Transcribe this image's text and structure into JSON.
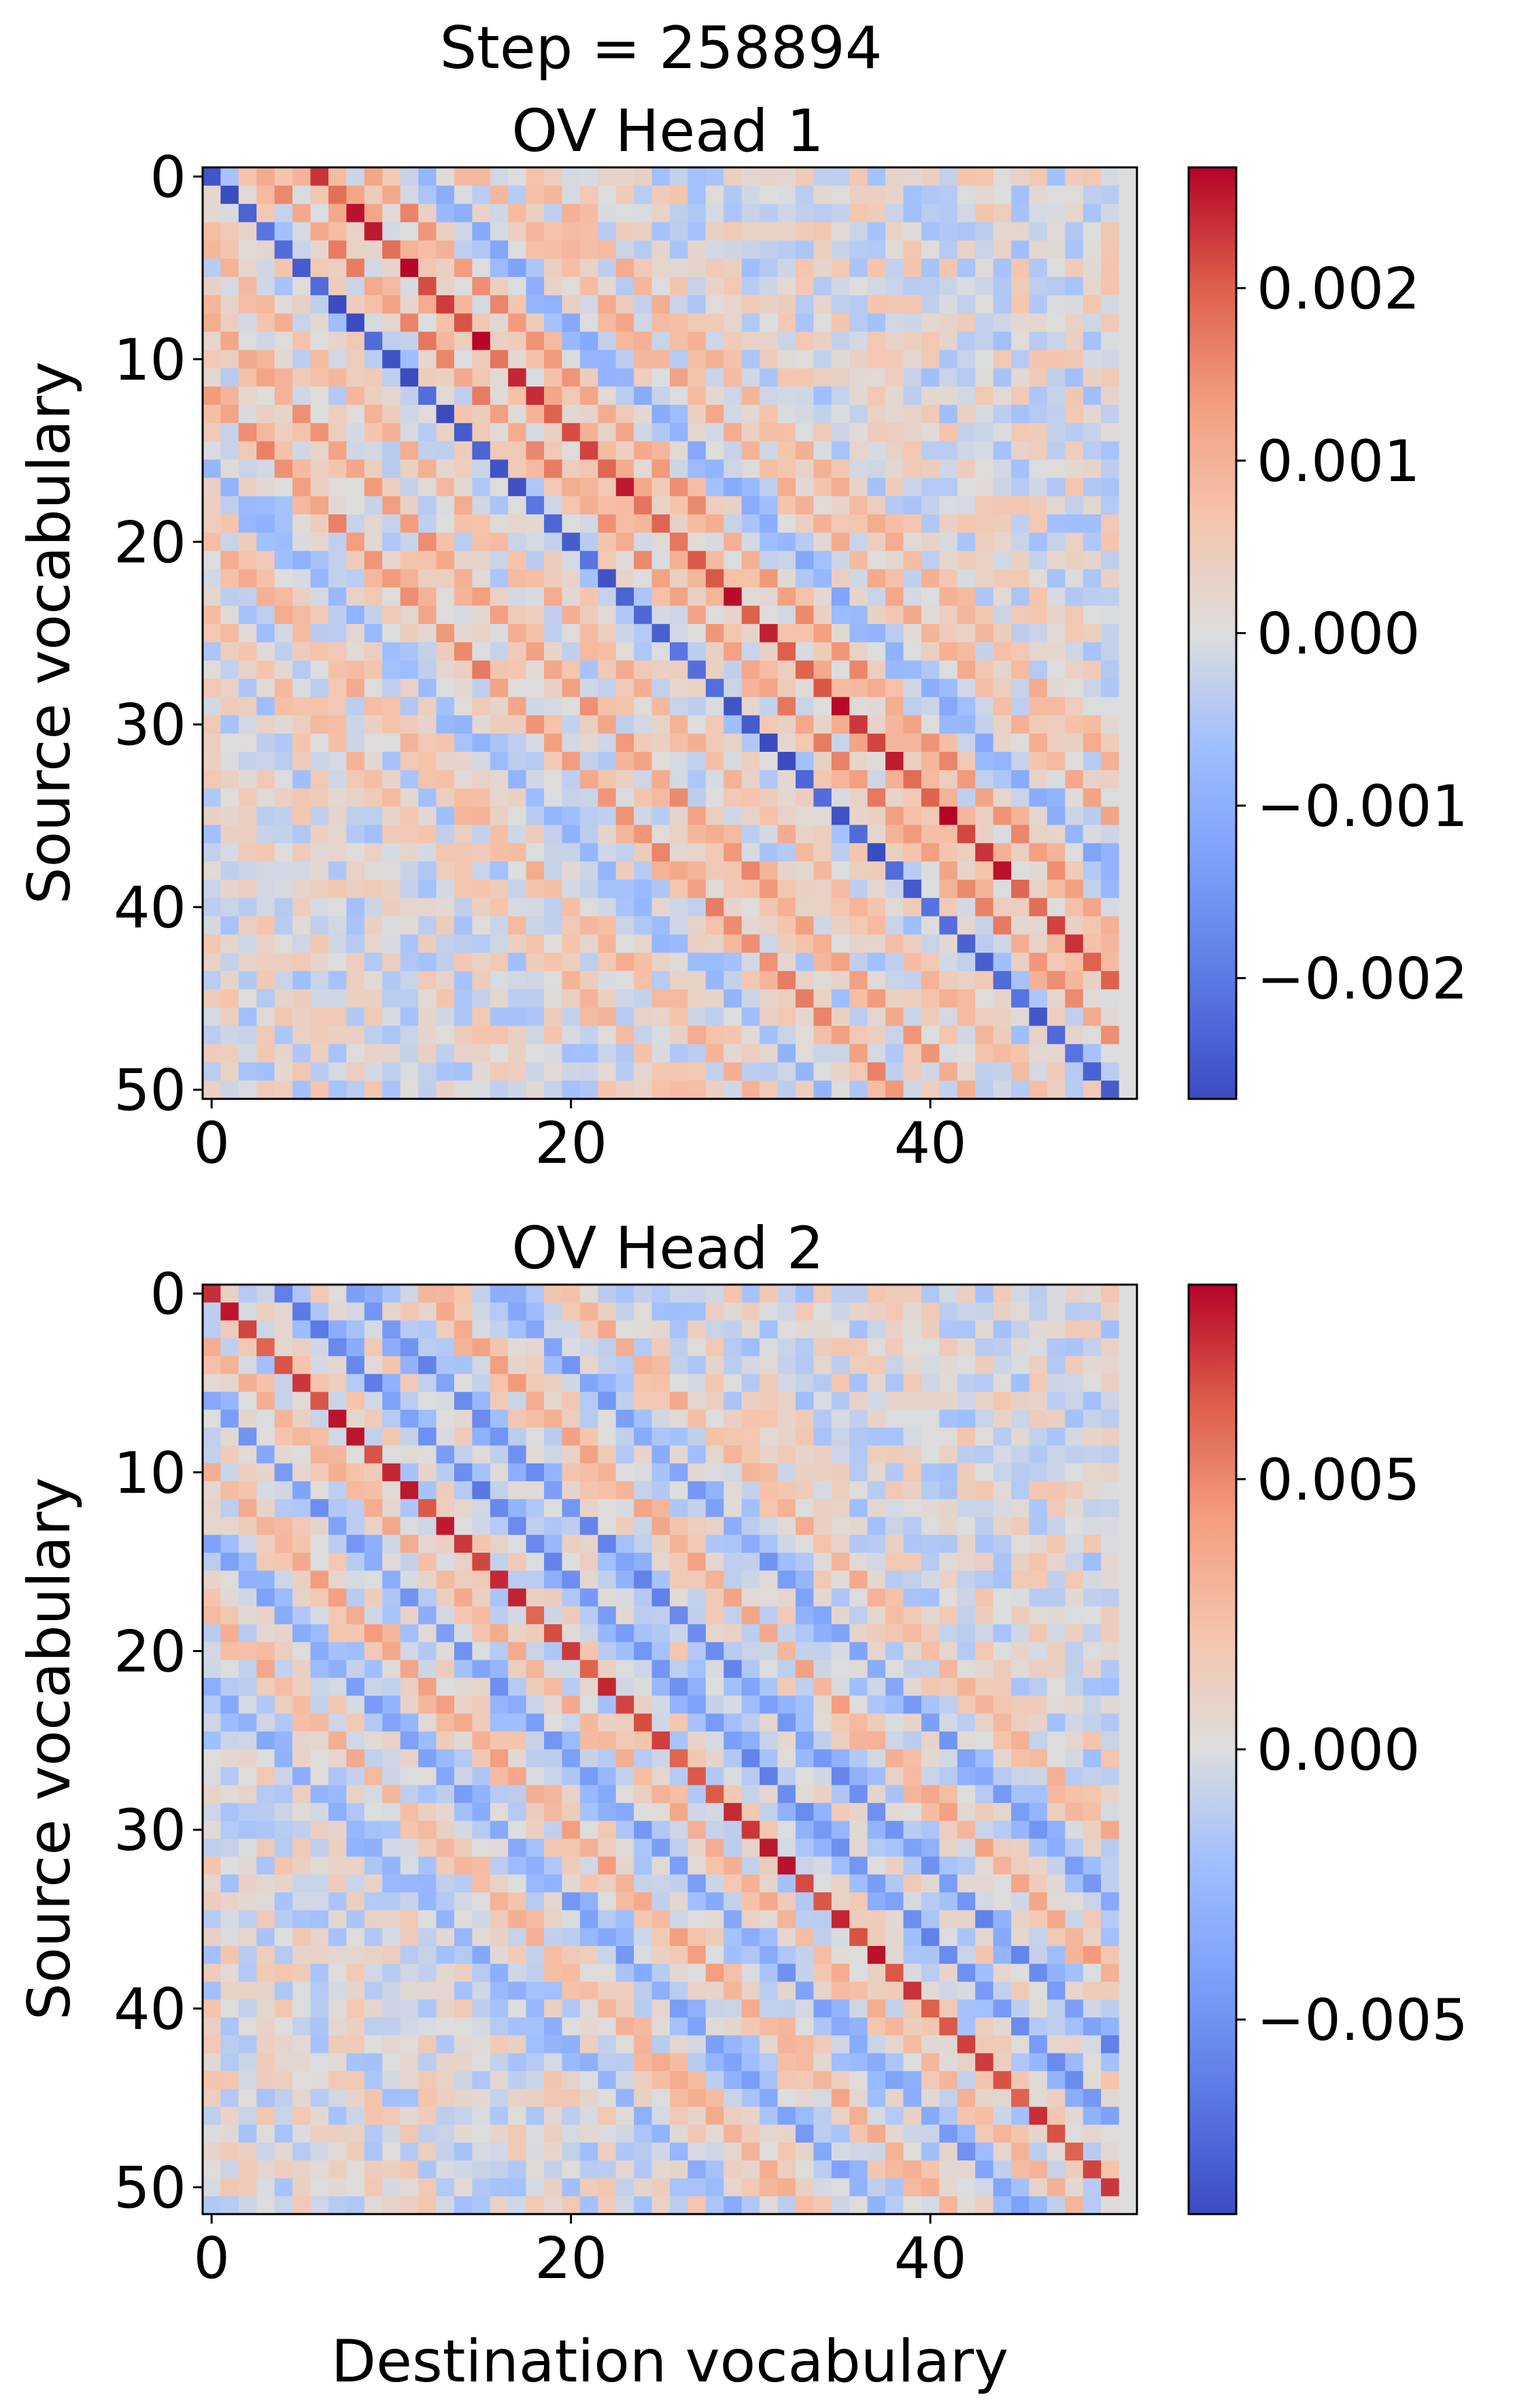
{
  "suptitle": "Step = 258894",
  "colormap": "coolwarm",
  "colors": {
    "low": "#3b4cc0",
    "mid": "#dddddd",
    "high": "#b40426"
  },
  "chart_data": [
    {
      "type": "heatmap",
      "title": "OV Head 1",
      "xlabel": "",
      "ylabel": "Source vocabulary",
      "matrix_size": [
        51,
        52
      ],
      "x_range": [
        0,
        51
      ],
      "y_range": [
        0,
        50
      ],
      "x_ticks": [
        0,
        20,
        40
      ],
      "y_ticks": [
        0,
        10,
        20,
        30,
        40,
        50
      ],
      "colorbar": {
        "range": [
          -0.0027,
          0.0027
        ],
        "ticks": [
          0.002,
          0.001,
          0.0,
          -0.001,
          -0.002
        ],
        "tick_labels": [
          "0.002",
          "0.001",
          "0.000",
          "−0.001",
          "−0.002"
        ]
      },
      "pattern": {
        "main_diagonal_value": -0.0024,
        "bands": [
          {
            "offset": 3,
            "value": 0.0014
          },
          {
            "offset": 6,
            "value": 0.0022
          },
          {
            "offset": 9,
            "value": 0.0013
          },
          {
            "offset": 12,
            "value": -0.001
          },
          {
            "offset": 15,
            "value": 0.001
          },
          {
            "offset": 18,
            "value": 0.0009
          },
          {
            "offset": -4,
            "value": 0.0009
          },
          {
            "offset": -8,
            "value": 0.0013
          },
          {
            "offset": -12,
            "value": 0.0014
          },
          {
            "offset": -16,
            "value": -0.0008
          },
          {
            "offset": -20,
            "value": 0.0009
          },
          {
            "offset": -24,
            "value": 0.0008
          }
        ],
        "last_column_value": 0.0
      }
    },
    {
      "type": "heatmap",
      "title": "OV Head 2",
      "xlabel": "Destination vocabulary",
      "ylabel": "Source vocabulary",
      "matrix_size": [
        52,
        52
      ],
      "x_range": [
        0,
        51
      ],
      "y_range": [
        0,
        51
      ],
      "x_ticks": [
        0,
        20,
        40
      ],
      "y_ticks": [
        0,
        10,
        20,
        30,
        40,
        50
      ],
      "colorbar": {
        "range": [
          -0.0086,
          0.0086
        ],
        "ticks": [
          0.005,
          0.0,
          -0.005
        ],
        "tick_labels": [
          "0.005",
          "0.000",
          "−0.005"
        ]
      },
      "pattern": {
        "main_diagonal_value": 0.0072,
        "bands": [
          {
            "offset": 4,
            "value": -0.0052
          },
          {
            "offset": 8,
            "value": -0.0048
          },
          {
            "offset": 12,
            "value": 0.0035
          },
          {
            "offset": 16,
            "value": -0.004
          },
          {
            "offset": 20,
            "value": 0.003
          },
          {
            "offset": -3,
            "value": 0.003
          },
          {
            "offset": -6,
            "value": -0.0042
          },
          {
            "offset": -10,
            "value": 0.0035
          },
          {
            "offset": -14,
            "value": -0.0038
          },
          {
            "offset": -18,
            "value": 0.003
          },
          {
            "offset": -22,
            "value": -0.003
          }
        ],
        "last_column_value": 0.0
      }
    }
  ]
}
